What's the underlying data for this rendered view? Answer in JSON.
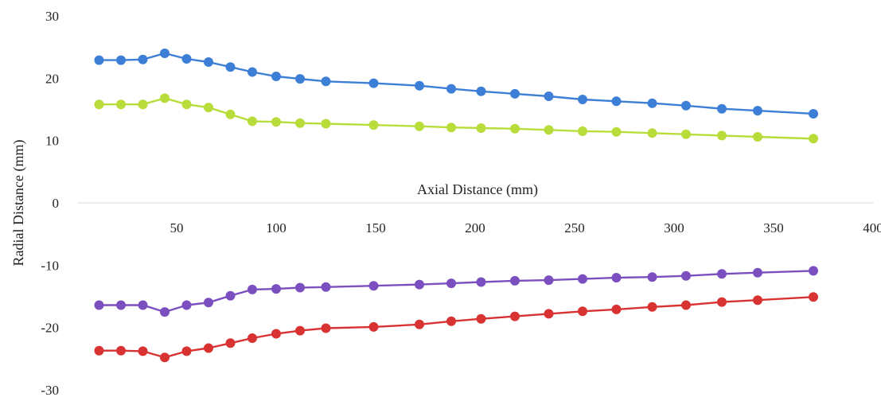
{
  "chart_data": {
    "type": "line",
    "title": "",
    "xlabel": "Axial Distance (mm)",
    "ylabel": "Radial Distance (mm)",
    "xlim": [
      0,
      400
    ],
    "ylim": [
      -30,
      30
    ],
    "xticks": [
      50,
      100,
      150,
      200,
      250,
      300,
      350,
      400
    ],
    "yticks": [
      30,
      20,
      10,
      0,
      -10,
      -20,
      -30
    ],
    "grid": false,
    "legend": "none",
    "x": [
      11,
      22,
      33,
      44,
      55,
      66,
      77,
      88,
      100,
      112,
      125,
      149,
      172,
      188,
      203,
      220,
      237,
      254,
      271,
      289,
      306,
      324,
      342,
      370
    ],
    "series": [
      {
        "color": "#3d7fd6",
        "values": [
          22.9,
          22.9,
          23.0,
          24.0,
          23.1,
          22.6,
          21.8,
          21.0,
          20.3,
          19.9,
          19.5,
          19.2,
          18.8,
          18.3,
          17.9,
          17.5,
          17.1,
          16.6,
          16.3,
          16.0,
          15.6,
          15.1,
          14.8,
          14.3
        ]
      },
      {
        "color": "#b8dd3a",
        "values": [
          15.8,
          15.8,
          15.8,
          16.8,
          15.8,
          15.3,
          14.2,
          13.1,
          13.0,
          12.8,
          12.7,
          12.5,
          12.3,
          12.1,
          12.0,
          11.9,
          11.7,
          11.5,
          11.4,
          11.2,
          11.0,
          10.8,
          10.6,
          10.3
        ]
      },
      {
        "color": "#7b4fbf",
        "values": [
          -16.4,
          -16.4,
          -16.4,
          -17.5,
          -16.4,
          -16.0,
          -14.9,
          -13.9,
          -13.8,
          -13.6,
          -13.5,
          -13.3,
          -13.1,
          -12.9,
          -12.7,
          -12.5,
          -12.4,
          -12.2,
          -12.0,
          -11.9,
          -11.7,
          -11.4,
          -11.2,
          -10.9
        ]
      },
      {
        "color": "#d93232",
        "values": [
          -23.7,
          -23.7,
          -23.8,
          -24.8,
          -23.8,
          -23.3,
          -22.5,
          -21.7,
          -21.0,
          -20.5,
          -20.1,
          -19.9,
          -19.5,
          -19.0,
          -18.6,
          -18.2,
          -17.8,
          -17.4,
          -17.1,
          -16.7,
          -16.4,
          -15.9,
          -15.6,
          -15.1
        ]
      }
    ]
  }
}
